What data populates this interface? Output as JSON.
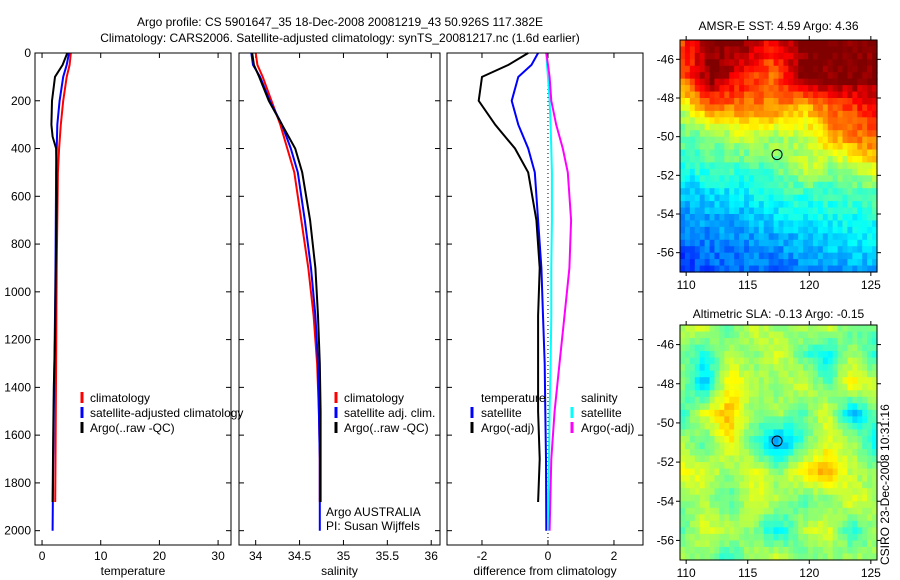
{
  "header": {
    "title_line1": "Argo profile: CS 5901647_35 18-Dec-2008 20081219_43 50.926S 117.382E",
    "title_line2": "Climatology: CARS2006. Satellite-adjusted climatology: synTS_20081217.nc (1.6d earlier)"
  },
  "footer_stamp": "CSIRO 23-Dec-2008 10:31:16",
  "colors": {
    "climatology": "#ff0000",
    "satellite": "#0000ff",
    "argo": "#000000",
    "sal_satellite": "#00ffff",
    "sal_argo": "#ff00ff"
  },
  "chart_data": [
    {
      "type": "line",
      "id": "temperature",
      "xlabel": "temperature",
      "ylabel": "",
      "xlim": [
        -1.2,
        32.2
      ],
      "ylim": [
        2060,
        0
      ],
      "xticks": [
        0,
        10,
        20,
        30
      ],
      "yticks": [
        0,
        200,
        400,
        600,
        800,
        1000,
        1200,
        1400,
        1600,
        1800,
        2000
      ],
      "legend": [
        "climatology",
        "satellite-adjusted climatology",
        "Argo(..raw -QC)"
      ],
      "legend_placement": "lower-right",
      "series": [
        {
          "name": "climatology",
          "color": "#ff0000",
          "x": [
            4.9,
            4.7,
            4.2,
            3.6,
            3.2,
            2.9,
            2.7,
            2.6,
            2.5,
            2.45,
            2.4,
            2.35,
            2.3,
            2.25
          ],
          "y": [
            0,
            50,
            100,
            200,
            300,
            400,
            500,
            700,
            900,
            1100,
            1300,
            1500,
            1700,
            1880
          ]
        },
        {
          "name": "satellite-adjusted climatology",
          "color": "#0000ff",
          "x": [
            4.6,
            4.2,
            3.6,
            3.0,
            2.6,
            2.5,
            2.4,
            2.35,
            2.3,
            2.2,
            2.1,
            2.0,
            1.9,
            1.8
          ],
          "y": [
            0,
            50,
            100,
            200,
            300,
            400,
            500,
            700,
            900,
            1100,
            1300,
            1500,
            1700,
            2000
          ]
        },
        {
          "name": "Argo(..raw -QC)",
          "color": "#000000",
          "x": [
            4.3,
            3.5,
            2.2,
            1.7,
            1.6,
            1.8,
            2.4,
            2.5,
            2.4,
            2.3,
            2.2,
            2.0,
            1.9,
            1.8
          ],
          "y": [
            0,
            50,
            100,
            200,
            300,
            350,
            400,
            600,
            800,
            1000,
            1200,
            1400,
            1600,
            1880
          ]
        }
      ]
    },
    {
      "type": "line",
      "id": "salinity",
      "xlabel": "salinity",
      "xlim": [
        33.81,
        36.1
      ],
      "ylim": [
        2060,
        0
      ],
      "xticks": [
        34,
        34.5,
        35,
        35.5,
        36
      ],
      "xticklabels": [
        "34",
        "34.5",
        "35",
        "35.5",
        "36"
      ],
      "legend": [
        "climatology",
        "satellite adj. clim.",
        "Argo(..raw -QC)"
      ],
      "legend_placement": "lower-right",
      "annotation": [
        "Argo AUSTRALIA",
        "PI: Susan Wijffels"
      ],
      "series": [
        {
          "name": "climatology",
          "color": "#ff0000",
          "x": [
            34.0,
            34.02,
            34.08,
            34.18,
            34.28,
            34.36,
            34.44,
            34.52,
            34.6,
            34.66,
            34.7,
            34.72,
            34.73,
            34.73
          ],
          "y": [
            0,
            50,
            100,
            200,
            300,
            400,
            500,
            700,
            900,
            1100,
            1300,
            1500,
            1700,
            1880
          ]
        },
        {
          "name": "satellite adj. clim.",
          "color": "#0000ff",
          "x": [
            33.95,
            33.97,
            34.05,
            34.16,
            34.3,
            34.4,
            34.48,
            34.56,
            34.63,
            34.68,
            34.71,
            34.72,
            34.73,
            34.73
          ],
          "y": [
            0,
            50,
            100,
            200,
            300,
            400,
            500,
            700,
            900,
            1100,
            1300,
            1500,
            1700,
            2000
          ]
        },
        {
          "name": "Argo(..raw -QC)",
          "color": "#000000",
          "x": [
            33.96,
            33.98,
            34.04,
            34.15,
            34.3,
            34.45,
            34.53,
            34.62,
            34.68,
            34.71,
            34.73,
            34.74,
            34.74,
            34.74
          ],
          "y": [
            0,
            50,
            100,
            200,
            300,
            400,
            500,
            700,
            900,
            1100,
            1300,
            1500,
            1700,
            1880
          ]
        }
      ]
    },
    {
      "type": "line",
      "id": "difference",
      "xlabel": "difference from climatology",
      "xlim": [
        -3.06,
        2.88
      ],
      "ylim": [
        2060,
        0
      ],
      "xticks": [
        -2,
        0,
        2
      ],
      "legend_temperature": {
        "title": "temperature",
        "items": [
          "satellite",
          "Argo(-adj)"
        ]
      },
      "legend_salinity": {
        "title": "salinity",
        "items": [
          "satellite",
          "Argo(-adj)"
        ]
      },
      "series": [
        {
          "name": "temperature satellite",
          "color": "#0000ff",
          "x": [
            -0.3,
            -0.5,
            -0.9,
            -1.1,
            -0.9,
            -0.6,
            -0.4,
            -0.3,
            -0.2,
            -0.15,
            -0.1,
            -0.08,
            -0.06,
            -0.05
          ],
          "y": [
            0,
            50,
            100,
            200,
            300,
            400,
            500,
            700,
            900,
            1100,
            1300,
            1500,
            1700,
            2000
          ]
        },
        {
          "name": "temperature Argo(-adj)",
          "color": "#000000",
          "x": [
            -0.6,
            -1.2,
            -2.0,
            -2.1,
            -1.6,
            -1.0,
            -0.6,
            -0.35,
            -0.25,
            -0.3,
            -0.3,
            -0.3,
            -0.25,
            -0.3
          ],
          "y": [
            0,
            50,
            100,
            200,
            300,
            400,
            500,
            700,
            900,
            1100,
            1300,
            1500,
            1700,
            1880
          ]
        },
        {
          "name": "salinity satellite",
          "color": "#00ffff",
          "x": [
            -0.05,
            -0.03,
            0.0,
            0.05,
            0.08,
            0.1,
            0.12,
            0.12,
            0.1,
            0.1,
            0.08,
            0.05,
            0.03,
            0.0
          ],
          "y": [
            0,
            50,
            100,
            200,
            300,
            400,
            500,
            700,
            900,
            1100,
            1300,
            1500,
            1700,
            2000
          ]
        },
        {
          "name": "salinity Argo(-adj)",
          "color": "#ff00ff",
          "x": [
            -0.05,
            0.0,
            0.05,
            0.1,
            0.25,
            0.45,
            0.6,
            0.7,
            0.65,
            0.5,
            0.35,
            0.2,
            0.1,
            0.05
          ],
          "y": [
            0,
            50,
            100,
            200,
            300,
            400,
            500,
            700,
            900,
            1100,
            1300,
            1500,
            1700,
            2000
          ]
        }
      ]
    },
    {
      "type": "heatmap",
      "id": "sst-map",
      "title": "AMSR-E SST: 4.59 Argo: 4.36",
      "xlim": [
        109.5,
        125.5
      ],
      "ylim": [
        -57,
        -45
      ],
      "xticks": [
        110,
        115,
        120,
        125
      ],
      "yticks": [
        -46,
        -48,
        -50,
        -52,
        -54,
        -56
      ],
      "clim": [
        0.5,
        8.5
      ],
      "marker": {
        "lon": 117.382,
        "lat": -50.926
      },
      "coarse_lons": [
        109.5,
        112,
        114.5,
        117,
        119.5,
        122,
        125.5
      ],
      "coarse_lats": [
        -45,
        -47,
        -48.5,
        -50,
        -51.5,
        -53,
        -55,
        -57
      ],
      "values": [
        [
          7.0,
          8.5,
          8.5,
          7.5,
          8.5,
          8.5,
          8.5
        ],
        [
          6.5,
          8.5,
          7.5,
          6.5,
          8.5,
          8.5,
          8.5
        ],
        [
          5.0,
          6.5,
          6.5,
          6.5,
          6.0,
          6.8,
          7.5
        ],
        [
          4.2,
          4.5,
          5.0,
          4.8,
          4.8,
          6.3,
          6.8
        ],
        [
          3.8,
          4.1,
          4.1,
          4.2,
          5.2,
          4.6,
          5.6
        ],
        [
          3.0,
          3.2,
          3.4,
          3.8,
          3.9,
          3.9,
          4.1
        ],
        [
          2.4,
          2.6,
          2.7,
          2.9,
          3.1,
          3.3,
          3.5
        ],
        [
          1.8,
          2.2,
          2.4,
          2.3,
          2.5,
          2.7,
          2.8
        ]
      ]
    },
    {
      "type": "heatmap",
      "id": "sla-map",
      "title": "Altimetric SLA: -0.13 Argo: -0.15",
      "xlim": [
        109.5,
        125.5
      ],
      "ylim": [
        -57,
        -45
      ],
      "xticks": [
        110,
        115,
        120,
        125
      ],
      "yticks": [
        -46,
        -48,
        -50,
        -52,
        -54,
        -56
      ],
      "clim": [
        -0.5,
        0.5
      ],
      "marker": {
        "lon": 117.382,
        "lat": -50.926
      },
      "coarse_lons": [
        109.5,
        111.5,
        113.5,
        115.5,
        117.5,
        119.5,
        121.5,
        123.5,
        125.5
      ],
      "coarse_lats": [
        -45,
        -46.5,
        -48,
        -49.5,
        -51,
        -52.5,
        -54,
        -55.5,
        -57
      ],
      "values": [
        [
          0.05,
          0.1,
          -0.05,
          0.1,
          0.0,
          0.05,
          0.1,
          -0.05,
          0.0
        ],
        [
          0.0,
          -0.1,
          0.05,
          0.0,
          0.1,
          -0.05,
          -0.15,
          0.05,
          -0.1
        ],
        [
          0.05,
          -0.2,
          0.15,
          0.05,
          0.0,
          0.1,
          -0.05,
          0.15,
          0.05
        ],
        [
          -0.1,
          0.1,
          0.2,
          0.0,
          0.05,
          -0.05,
          0.1,
          -0.2,
          0.0
        ],
        [
          0.05,
          -0.05,
          0.15,
          -0.05,
          -0.25,
          -0.05,
          0.1,
          0.05,
          -0.15
        ],
        [
          0.1,
          0.1,
          0.0,
          0.1,
          0.0,
          0.15,
          0.2,
          0.05,
          0.0
        ],
        [
          0.0,
          0.05,
          -0.05,
          0.1,
          0.05,
          -0.05,
          0.0,
          0.1,
          0.05
        ],
        [
          -0.05,
          0.1,
          0.05,
          0.0,
          -0.15,
          0.05,
          0.1,
          -0.1,
          0.05
        ],
        [
          0.05,
          0.0,
          -0.1,
          0.05,
          0.1,
          -0.05,
          0.0,
          0.05,
          0.0
        ]
      ]
    }
  ]
}
